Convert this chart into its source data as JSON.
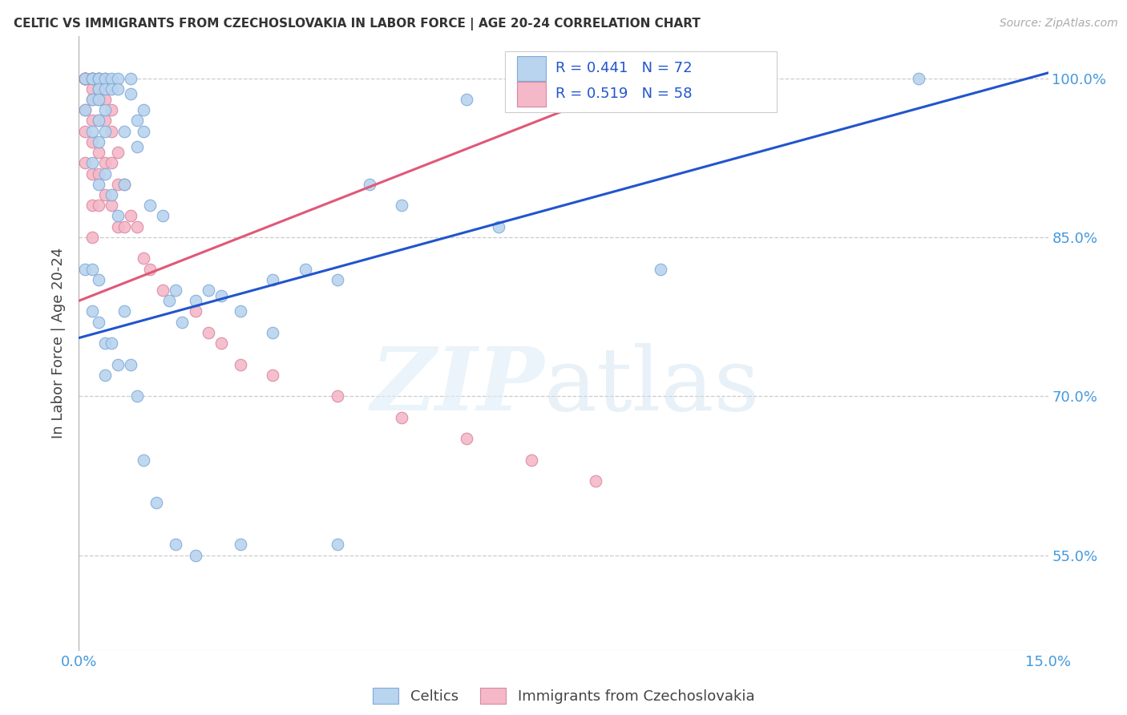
{
  "title": "CELTIC VS IMMIGRANTS FROM CZECHOSLOVAKIA IN LABOR FORCE | AGE 20-24 CORRELATION CHART",
  "source": "Source: ZipAtlas.com",
  "ylabel": "In Labor Force | Age 20-24",
  "legend_blue_r": "0.441",
  "legend_blue_n": "72",
  "legend_pink_r": "0.519",
  "legend_pink_n": "58",
  "blue_color": "#b8d4ee",
  "pink_color": "#f4b8c8",
  "blue_line_color": "#2255cc",
  "pink_line_color": "#e05878",
  "xmin": 0.0,
  "xmax": 0.15,
  "ymin": 0.46,
  "ymax": 1.04,
  "yticks": [
    0.55,
    0.7,
    0.85,
    1.0
  ],
  "ytick_labels": [
    "55.0%",
    "70.0%",
    "85.0%",
    "100.0%"
  ],
  "blue_line": [
    0.0,
    0.15,
    0.755,
    1.005
  ],
  "pink_line": [
    0.0,
    0.09,
    0.79,
    1.005
  ],
  "blue_scatter_x": [
    0.001,
    0.001,
    0.002,
    0.002,
    0.002,
    0.002,
    0.002,
    0.003,
    0.003,
    0.003,
    0.003,
    0.003,
    0.003,
    0.003,
    0.004,
    0.004,
    0.004,
    0.004,
    0.004,
    0.005,
    0.005,
    0.005,
    0.006,
    0.006,
    0.006,
    0.007,
    0.007,
    0.008,
    0.008,
    0.009,
    0.009,
    0.01,
    0.01,
    0.011,
    0.013,
    0.014,
    0.015,
    0.016,
    0.018,
    0.02,
    0.022,
    0.025,
    0.03,
    0.03,
    0.035,
    0.04,
    0.045,
    0.05,
    0.06,
    0.065,
    0.075,
    0.09,
    0.1,
    0.13,
    0.001,
    0.002,
    0.002,
    0.003,
    0.003,
    0.004,
    0.004,
    0.005,
    0.006,
    0.007,
    0.008,
    0.009,
    0.01,
    0.012,
    0.015,
    0.018,
    0.025,
    0.04
  ],
  "blue_scatter_y": [
    1.0,
    0.97,
    1.0,
    1.0,
    0.98,
    0.95,
    0.92,
    1.0,
    1.0,
    0.99,
    0.98,
    0.96,
    0.94,
    0.9,
    1.0,
    0.99,
    0.97,
    0.95,
    0.91,
    1.0,
    0.99,
    0.89,
    1.0,
    0.99,
    0.87,
    0.95,
    0.9,
    1.0,
    0.985,
    0.96,
    0.935,
    0.97,
    0.95,
    0.88,
    0.87,
    0.79,
    0.8,
    0.77,
    0.79,
    0.8,
    0.795,
    0.78,
    0.81,
    0.76,
    0.82,
    0.81,
    0.9,
    0.88,
    0.98,
    0.86,
    1.0,
    0.82,
    1.0,
    1.0,
    0.82,
    0.82,
    0.78,
    0.81,
    0.77,
    0.75,
    0.72,
    0.75,
    0.73,
    0.78,
    0.73,
    0.7,
    0.64,
    0.6,
    0.56,
    0.55,
    0.56,
    0.56
  ],
  "pink_scatter_x": [
    0.001,
    0.001,
    0.001,
    0.001,
    0.001,
    0.001,
    0.001,
    0.001,
    0.001,
    0.001,
    0.002,
    0.002,
    0.002,
    0.002,
    0.002,
    0.002,
    0.002,
    0.002,
    0.002,
    0.002,
    0.002,
    0.003,
    0.003,
    0.003,
    0.003,
    0.003,
    0.003,
    0.003,
    0.003,
    0.004,
    0.004,
    0.004,
    0.004,
    0.004,
    0.005,
    0.005,
    0.005,
    0.005,
    0.006,
    0.006,
    0.006,
    0.007,
    0.007,
    0.008,
    0.009,
    0.01,
    0.011,
    0.013,
    0.018,
    0.02,
    0.022,
    0.025,
    0.03,
    0.04,
    0.05,
    0.06,
    0.07,
    0.08
  ],
  "pink_scatter_y": [
    1.0,
    1.0,
    1.0,
    1.0,
    1.0,
    1.0,
    1.0,
    0.97,
    0.95,
    0.92,
    1.0,
    1.0,
    1.0,
    1.0,
    0.99,
    0.98,
    0.96,
    0.94,
    0.91,
    0.88,
    0.85,
    1.0,
    1.0,
    0.99,
    0.98,
    0.96,
    0.93,
    0.91,
    0.88,
    1.0,
    0.98,
    0.96,
    0.92,
    0.89,
    0.97,
    0.95,
    0.92,
    0.88,
    0.93,
    0.9,
    0.86,
    0.9,
    0.86,
    0.87,
    0.86,
    0.83,
    0.82,
    0.8,
    0.78,
    0.76,
    0.75,
    0.73,
    0.72,
    0.7,
    0.68,
    0.66,
    0.64,
    0.62
  ]
}
